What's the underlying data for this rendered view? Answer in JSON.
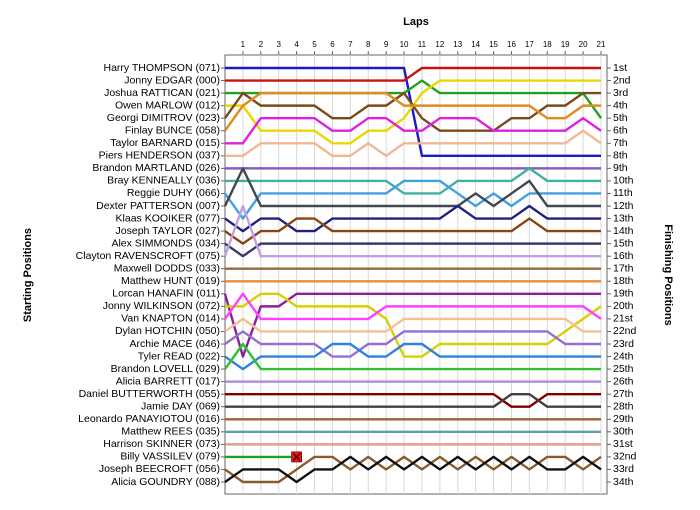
{
  "chart_data": {
    "type": "lap_chart",
    "title": "Laps",
    "y_label": "Starting Positions",
    "y2_label": "Finishing Positions",
    "x": [
      0,
      1,
      2,
      3,
      4,
      5,
      6,
      7,
      8,
      9,
      10,
      11,
      12,
      13,
      14,
      15,
      16,
      17,
      18,
      19,
      20,
      21
    ],
    "xlim": [
      0,
      21
    ],
    "xticks": [
      1,
      2,
      3,
      4,
      5,
      6,
      7,
      8,
      9,
      10,
      11,
      12,
      13,
      14,
      15,
      16,
      17,
      18,
      19,
      20,
      21
    ],
    "ylim": [
      1,
      34
    ],
    "grid": true,
    "y2ticks": [
      {
        "value": 1,
        "label": "1st"
      },
      {
        "value": 2,
        "label": "2nd"
      },
      {
        "value": 3,
        "label": "3rd"
      },
      {
        "value": 4,
        "label": "4th"
      },
      {
        "value": 5,
        "label": "5th"
      },
      {
        "value": 6,
        "label": "6th"
      },
      {
        "value": 7,
        "label": "7th"
      },
      {
        "value": 8,
        "label": "8th"
      },
      {
        "value": 9,
        "label": "9th"
      },
      {
        "value": 10,
        "label": "10th"
      },
      {
        "value": 11,
        "label": "11th"
      },
      {
        "value": 12,
        "label": "12th"
      },
      {
        "value": 13,
        "label": "13th"
      },
      {
        "value": 14,
        "label": "14th"
      },
      {
        "value": 15,
        "label": "15th"
      },
      {
        "value": 16,
        "label": "16th"
      },
      {
        "value": 17,
        "label": "17th"
      },
      {
        "value": 18,
        "label": "18th"
      },
      {
        "value": 19,
        "label": "19th"
      },
      {
        "value": 20,
        "label": "20th"
      },
      {
        "value": 21,
        "label": "21st"
      },
      {
        "value": 22,
        "label": "22nd"
      },
      {
        "value": 23,
        "label": "23rd"
      },
      {
        "value": 24,
        "label": "24th"
      },
      {
        "value": 25,
        "label": "25th"
      },
      {
        "value": 26,
        "label": "26th"
      },
      {
        "value": 27,
        "label": "27th"
      },
      {
        "value": 28,
        "label": "28th"
      },
      {
        "value": 29,
        "label": "29th"
      },
      {
        "value": 30,
        "label": "30th"
      },
      {
        "value": 31,
        "label": "31st"
      },
      {
        "value": 32,
        "label": "32nd"
      },
      {
        "value": 33,
        "label": "33rd"
      },
      {
        "value": 34,
        "label": "34th"
      }
    ],
    "series": [
      {
        "name": "Harry THOMPSON (071)",
        "color": "#1a1ac8",
        "values": [
          1,
          1,
          1,
          1,
          1,
          1,
          1,
          1,
          1,
          1,
          1,
          8,
          8,
          8,
          8,
          8,
          8,
          8,
          8,
          8,
          8,
          8
        ]
      },
      {
        "name": "Jonny EDGAR (000)",
        "color": "#cc1111",
        "values": [
          2,
          2,
          2,
          2,
          2,
          2,
          2,
          2,
          2,
          2,
          2,
          1,
          1,
          1,
          1,
          1,
          1,
          1,
          1,
          1,
          1,
          1
        ]
      },
      {
        "name": "Joshua RATTICAN (021)",
        "color": "#22a022",
        "values": [
          3,
          3,
          3,
          3,
          3,
          3,
          3,
          3,
          3,
          3,
          3,
          2,
          3,
          3,
          3,
          3,
          3,
          3,
          3,
          3,
          3,
          5
        ]
      },
      {
        "name": "Owen MARLOW (012)",
        "color": "#e8d800",
        "values": [
          4,
          4,
          6,
          6,
          6,
          6,
          7,
          7,
          6,
          6,
          5,
          3,
          2,
          2,
          2,
          2,
          2,
          2,
          2,
          2,
          2,
          2
        ]
      },
      {
        "name": "Georgi DIMITROV (023)",
        "color": "#7a4a1a",
        "values": [
          5,
          3,
          4,
          4,
          4,
          4,
          5,
          5,
          4,
          4,
          3,
          5,
          6,
          6,
          6,
          6,
          5,
          5,
          4,
          4,
          3,
          3
        ]
      },
      {
        "name": "Finlay BUNCE (058)",
        "color": "#e08a20",
        "values": [
          6,
          4,
          3,
          3,
          3,
          3,
          3,
          3,
          3,
          3,
          4,
          4,
          4,
          4,
          4,
          4,
          4,
          4,
          5,
          5,
          4,
          4
        ]
      },
      {
        "name": "Taylor BARNARD (015)",
        "color": "#e020e0",
        "values": [
          7,
          7,
          5,
          5,
          5,
          5,
          6,
          6,
          5,
          5,
          6,
          6,
          5,
          5,
          5,
          6,
          6,
          6,
          6,
          6,
          5,
          6
        ]
      },
      {
        "name": "Piers HENDERSON (037)",
        "color": "#f0b890",
        "values": [
          8,
          8,
          7,
          7,
          7,
          7,
          8,
          8,
          7,
          8,
          7,
          7,
          7,
          7,
          7,
          7,
          7,
          7,
          7,
          7,
          6,
          7
        ]
      },
      {
        "name": "Brandon MARTLAND (026)",
        "color": "#8060c0",
        "values": [
          9,
          9,
          9,
          9,
          9,
          9,
          9,
          9,
          9,
          9,
          9,
          9,
          9,
          9,
          9,
          9,
          9,
          9,
          9,
          9,
          9,
          9
        ]
      },
      {
        "name": "Bray KENNEALLY (036)",
        "color": "#40b0a0",
        "values": [
          10,
          10,
          10,
          10,
          10,
          10,
          10,
          10,
          10,
          10,
          11,
          11,
          11,
          10,
          10,
          10,
          10,
          9,
          10,
          10,
          10,
          10
        ]
      },
      {
        "name": "Reggie DUHY (066)",
        "color": "#40a0e0",
        "values": [
          11,
          13,
          11,
          11,
          11,
          11,
          11,
          11,
          11,
          11,
          10,
          10,
          10,
          11,
          12,
          11,
          12,
          11,
          11,
          11,
          11,
          11
        ]
      },
      {
        "name": "Dexter PATTERSON (007)",
        "color": "#404850",
        "values": [
          12,
          9,
          12,
          12,
          12,
          12,
          12,
          12,
          12,
          12,
          12,
          12,
          12,
          12,
          11,
          12,
          11,
          10,
          12,
          12,
          12,
          12
        ]
      },
      {
        "name": "Klaas KOOIKER (077)",
        "color": "#202080",
        "values": [
          13,
          14,
          13,
          13,
          14,
          14,
          13,
          13,
          13,
          13,
          13,
          13,
          13,
          12,
          13,
          13,
          13,
          12,
          13,
          13,
          13,
          13
        ]
      },
      {
        "name": "Joseph TAYLOR (027)",
        "color": "#8b4513",
        "values": [
          14,
          15,
          14,
          14,
          13,
          13,
          14,
          14,
          14,
          14,
          14,
          14,
          14,
          14,
          14,
          14,
          14,
          13,
          14,
          14,
          14,
          14
        ]
      },
      {
        "name": "Alex SIMMONDS (034)",
        "color": "#3a3a6a",
        "values": [
          15,
          16,
          15,
          15,
          15,
          15,
          15,
          15,
          15,
          15,
          15,
          15,
          15,
          15,
          15,
          15,
          15,
          15,
          15,
          15,
          15,
          15
        ]
      },
      {
        "name": "Clayton RAVENSCROFT (075)",
        "color": "#c0a0e0",
        "values": [
          16,
          12,
          16,
          16,
          16,
          16,
          16,
          16,
          16,
          16,
          16,
          16,
          16,
          16,
          16,
          16,
          16,
          16,
          16,
          16,
          16,
          16
        ]
      },
      {
        "name": "Maxwell DODDS (033)",
        "color": "#9a6a3a",
        "values": [
          17,
          17,
          17,
          17,
          17,
          17,
          17,
          17,
          17,
          17,
          17,
          17,
          17,
          17,
          17,
          17,
          17,
          17,
          17,
          17,
          17,
          17
        ]
      },
      {
        "name": "Matthew HUNT (019)",
        "color": "#f08a30",
        "values": [
          18,
          18,
          18,
          18,
          18,
          18,
          18,
          18,
          18,
          18,
          18,
          18,
          18,
          18,
          18,
          18,
          18,
          18,
          18,
          18,
          18,
          18
        ]
      },
      {
        "name": "Lorcan HANAFIN (011)",
        "color": "#8a20a0",
        "values": [
          19,
          24,
          20,
          20,
          19,
          19,
          19,
          19,
          19,
          19,
          19,
          19,
          19,
          19,
          19,
          19,
          19,
          19,
          19,
          19,
          19,
          19
        ]
      },
      {
        "name": "Jonny WILKINSON (072)",
        "color": "#d8d000",
        "values": [
          20,
          20,
          19,
          19,
          20,
          20,
          20,
          20,
          20,
          21,
          24,
          24,
          23,
          23,
          23,
          23,
          23,
          23,
          23,
          22,
          21,
          20
        ]
      },
      {
        "name": "Van KNAPTON (014)",
        "color": "#ff40ff",
        "values": [
          21,
          19,
          21,
          21,
          21,
          21,
          21,
          21,
          21,
          20,
          20,
          20,
          20,
          20,
          20,
          20,
          20,
          20,
          20,
          20,
          20,
          21
        ]
      },
      {
        "name": "Dylan HOTCHIN (050)",
        "color": "#f4c090",
        "values": [
          22,
          21,
          22,
          22,
          22,
          22,
          22,
          22,
          22,
          22,
          21,
          21,
          21,
          21,
          21,
          21,
          21,
          21,
          21,
          21,
          22,
          22
        ]
      },
      {
        "name": "Archie MACE (046)",
        "color": "#9070d0",
        "values": [
          23,
          22,
          23,
          23,
          23,
          23,
          24,
          24,
          23,
          23,
          22,
          22,
          22,
          22,
          22,
          22,
          22,
          22,
          22,
          23,
          23,
          23
        ]
      },
      {
        "name": "Tyler READ (022)",
        "color": "#3080e0",
        "values": [
          24,
          25,
          24,
          24,
          24,
          24,
          23,
          23,
          24,
          24,
          23,
          23,
          24,
          24,
          24,
          24,
          24,
          24,
          24,
          24,
          24,
          24
        ]
      },
      {
        "name": "Brandon LOVELL (029)",
        "color": "#30c030",
        "values": [
          25,
          23,
          25,
          25,
          25,
          25,
          25,
          25,
          25,
          25,
          25,
          25,
          25,
          25,
          25,
          25,
          25,
          25,
          25,
          25,
          25,
          25
        ]
      },
      {
        "name": "Alicia BARRETT (017)",
        "color": "#b090e0",
        "values": [
          26,
          26,
          26,
          26,
          26,
          26,
          26,
          26,
          26,
          26,
          26,
          26,
          26,
          26,
          26,
          26,
          26,
          26,
          26,
          26,
          26,
          26
        ]
      },
      {
        "name": "Daniel BUTTERWORTH (055)",
        "color": "#800000",
        "values": [
          27,
          27,
          27,
          27,
          27,
          27,
          27,
          27,
          27,
          27,
          27,
          27,
          27,
          27,
          27,
          27,
          28,
          28,
          27,
          27,
          27,
          27
        ]
      },
      {
        "name": "Jamie DAY (069)",
        "color": "#404040",
        "values": [
          28,
          28,
          28,
          28,
          28,
          28,
          28,
          28,
          28,
          28,
          28,
          28,
          28,
          28,
          28,
          28,
          27,
          27,
          28,
          28,
          28,
          28
        ]
      },
      {
        "name": "Leonardo PANAYIOTOU (016)",
        "color": "#a06030",
        "values": [
          29,
          29,
          29,
          29,
          29,
          29,
          29,
          29,
          29,
          29,
          29,
          29,
          29,
          29,
          29,
          29,
          29,
          29,
          29,
          29,
          29,
          29
        ]
      },
      {
        "name": "Matthew REES (035)",
        "color": "#60a0a0",
        "values": [
          30,
          30,
          30,
          30,
          30,
          30,
          30,
          30,
          30,
          30,
          30,
          30,
          30,
          30,
          30,
          30,
          30,
          30,
          30,
          30,
          30,
          30
        ]
      },
      {
        "name": "Harrison SKINNER (073)",
        "color": "#e0a090",
        "values": [
          31,
          31,
          31,
          31,
          31,
          31,
          31,
          31,
          31,
          31,
          31,
          31,
          31,
          31,
          31,
          31,
          31,
          31,
          31,
          31,
          31,
          31
        ]
      },
      {
        "name": "Billy VASSILEV (079)",
        "color": "#22a022",
        "values": [
          32,
          32,
          32,
          32,
          32,
          null,
          null,
          null,
          null,
          null,
          null,
          null,
          null,
          null,
          null,
          null,
          null,
          null,
          null,
          null,
          null,
          null
        ]
      },
      {
        "name": "Joseph BEECROFT (056)",
        "color": "#8b5a2b",
        "values": [
          33,
          34,
          34,
          34,
          33,
          32,
          32,
          33,
          32,
          33,
          32,
          33,
          32,
          33,
          32,
          33,
          32,
          33,
          32,
          32,
          33,
          32
        ]
      },
      {
        "name": "Alicia GOUNDRY (088)",
        "color": "#111111",
        "values": [
          34,
          33,
          33,
          33,
          34,
          33,
          33,
          32,
          33,
          32,
          33,
          32,
          33,
          32,
          33,
          32,
          33,
          32,
          33,
          33,
          32,
          33
        ]
      }
    ]
  }
}
